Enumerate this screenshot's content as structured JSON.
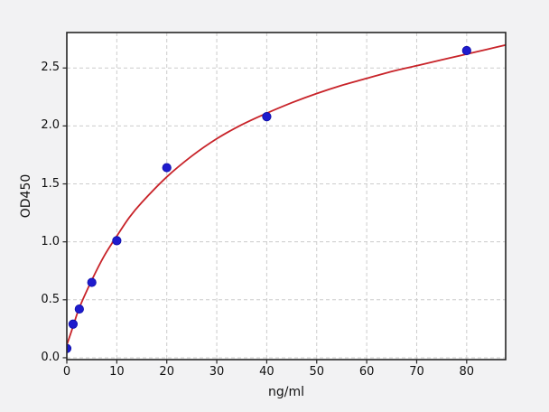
{
  "style": {
    "figure_bg": "#f2f2f3",
    "plot_bg": "#ffffff",
    "grid_color": "#cccccc",
    "spine_color": "#262626",
    "tick_color": "#262626",
    "text_color": "#111111"
  },
  "chart_data": {
    "type": "scatter",
    "title": "",
    "xlabel": "ng/ml",
    "ylabel": "OD450",
    "xlim": [
      0,
      87.8
    ],
    "ylim": [
      -0.016,
      2.806
    ],
    "grid": true,
    "legend_position": "none",
    "x_ticks": [
      0,
      10,
      20,
      30,
      40,
      50,
      60,
      70,
      80
    ],
    "x_tick_labels": [
      "0",
      "10",
      "20",
      "30",
      "40",
      "50",
      "60",
      "70",
      "80"
    ],
    "y_ticks": [
      0,
      0.5,
      1.0,
      1.5,
      2.0,
      2.5
    ],
    "y_tick_labels": [
      "0.0",
      "0.5",
      "1.0",
      "1.5",
      "2.0",
      "2.5"
    ],
    "series": [
      {
        "name": "standard-points",
        "type": "scatter",
        "marker": "circle",
        "color": "#1e1bcd",
        "edge_color": "#0d0da8",
        "x": [
          0,
          1.25,
          2.5,
          5,
          10,
          20,
          40,
          80
        ],
        "y": [
          0.08,
          0.29,
          0.42,
          0.65,
          1.01,
          1.64,
          2.08,
          2.65
        ]
      },
      {
        "name": "fit-curve",
        "type": "line",
        "color": "#c82329",
        "x": [
          0,
          1.25,
          2.5,
          5,
          7.5,
          10,
          12.5,
          15,
          20,
          25,
          30,
          35,
          40,
          45,
          50,
          55,
          60,
          65,
          70,
          75,
          80,
          84,
          88
        ],
        "y": [
          0.11,
          0.27,
          0.43,
          0.67,
          0.88,
          1.05,
          1.21,
          1.34,
          1.56,
          1.74,
          1.89,
          2.01,
          2.11,
          2.2,
          2.28,
          2.35,
          2.41,
          2.47,
          2.52,
          2.57,
          2.62,
          2.66,
          2.7
        ]
      }
    ]
  }
}
